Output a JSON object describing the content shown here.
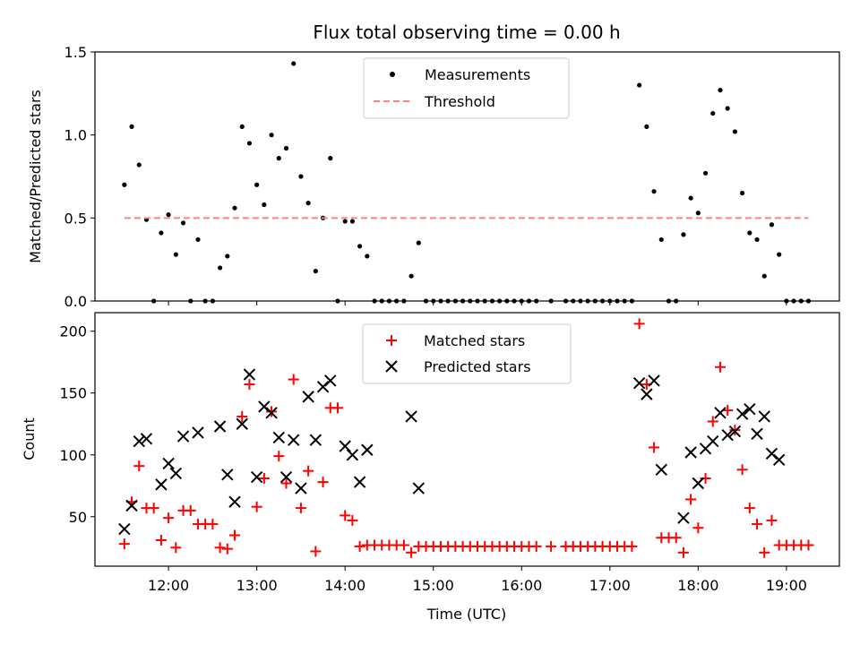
{
  "chart_data": [
    {
      "type": "scatter",
      "title": "Flux total observing time = 0.00 h",
      "xlabel": "",
      "ylabel": "Matched/Predicted stars",
      "xlim": [
        "11:10",
        "19:36"
      ],
      "ylim": [
        0,
        1.5
      ],
      "yticks": [
        "0.0",
        "0.5",
        "1.0",
        "1.5"
      ],
      "legend_position": "top-center",
      "series": [
        {
          "name": "Measurements",
          "marker": "dot",
          "color": "#000000",
          "points": [
            [
              "11:30",
              0.7
            ],
            [
              "11:35",
              1.05
            ],
            [
              "11:40",
              0.82
            ],
            [
              "11:45",
              0.49
            ],
            [
              "11:50",
              0.0
            ],
            [
              "11:55",
              0.41
            ],
            [
              "12:00",
              0.52
            ],
            [
              "12:05",
              0.28
            ],
            [
              "12:10",
              0.47
            ],
            [
              "12:15",
              0.0
            ],
            [
              "12:20",
              0.37
            ],
            [
              "12:25",
              0.0
            ],
            [
              "12:30",
              0.0
            ],
            [
              "12:35",
              0.2
            ],
            [
              "12:40",
              0.27
            ],
            [
              "12:45",
              0.56
            ],
            [
              "12:50",
              1.05
            ],
            [
              "12:55",
              0.95
            ],
            [
              "13:00",
              0.7
            ],
            [
              "13:05",
              0.58
            ],
            [
              "13:10",
              1.0
            ],
            [
              "13:15",
              0.86
            ],
            [
              "13:20",
              0.92
            ],
            [
              "13:25",
              1.43
            ],
            [
              "13:30",
              0.75
            ],
            [
              "13:35",
              0.59
            ],
            [
              "13:40",
              0.18
            ],
            [
              "13:45",
              0.5
            ],
            [
              "13:50",
              0.86
            ],
            [
              "13:55",
              0.0
            ],
            [
              "14:00",
              0.48
            ],
            [
              "14:05",
              0.48
            ],
            [
              "14:10",
              0.33
            ],
            [
              "14:15",
              0.27
            ],
            [
              "14:20",
              0.0
            ],
            [
              "14:25",
              0.0
            ],
            [
              "14:30",
              0.0
            ],
            [
              "14:35",
              0.0
            ],
            [
              "14:40",
              0.0
            ],
            [
              "14:45",
              0.15
            ],
            [
              "14:50",
              0.35
            ],
            [
              "14:55",
              0.0
            ],
            [
              "15:00",
              0.0
            ],
            [
              "15:05",
              0.0
            ],
            [
              "15:10",
              0.0
            ],
            [
              "15:15",
              0.0
            ],
            [
              "15:20",
              0.0
            ],
            [
              "15:25",
              0.0
            ],
            [
              "15:30",
              0.0
            ],
            [
              "15:35",
              0.0
            ],
            [
              "15:40",
              0.0
            ],
            [
              "15:45",
              0.0
            ],
            [
              "15:50",
              0.0
            ],
            [
              "15:55",
              0.0
            ],
            [
              "16:00",
              0.0
            ],
            [
              "16:05",
              0.0
            ],
            [
              "16:10",
              0.0
            ],
            [
              "16:20",
              0.0
            ],
            [
              "16:30",
              0.0
            ],
            [
              "16:35",
              0.0
            ],
            [
              "16:40",
              0.0
            ],
            [
              "16:45",
              0.0
            ],
            [
              "16:50",
              0.0
            ],
            [
              "16:55",
              0.0
            ],
            [
              "17:00",
              0.0
            ],
            [
              "17:05",
              0.0
            ],
            [
              "17:10",
              0.0
            ],
            [
              "17:15",
              0.0
            ],
            [
              "17:20",
              1.3
            ],
            [
              "17:25",
              1.05
            ],
            [
              "17:30",
              0.66
            ],
            [
              "17:35",
              0.37
            ],
            [
              "17:40",
              0.0
            ],
            [
              "17:45",
              0.0
            ],
            [
              "17:50",
              0.4
            ],
            [
              "17:55",
              0.62
            ],
            [
              "18:00",
              0.53
            ],
            [
              "18:05",
              0.77
            ],
            [
              "18:10",
              1.13
            ],
            [
              "18:15",
              1.27
            ],
            [
              "18:20",
              1.16
            ],
            [
              "18:25",
              1.02
            ],
            [
              "18:30",
              0.65
            ],
            [
              "18:35",
              0.41
            ],
            [
              "18:40",
              0.37
            ],
            [
              "18:45",
              0.15
            ],
            [
              "18:50",
              0.46
            ],
            [
              "18:55",
              0.28
            ],
            [
              "19:00",
              0.0
            ],
            [
              "19:05",
              0.0
            ],
            [
              "19:10",
              0.0
            ],
            [
              "19:15",
              0.0
            ]
          ]
        },
        {
          "name": "Threshold",
          "marker": "dashed-line",
          "color": "#ff8080",
          "points": [
            [
              "11:30",
              0.5
            ],
            [
              "19:15",
              0.5
            ]
          ]
        }
      ]
    },
    {
      "type": "scatter",
      "title": "",
      "xlabel": "Time (UTC)",
      "ylabel": "Count",
      "xlim": [
        "11:10",
        "19:36"
      ],
      "ylim": [
        10,
        215
      ],
      "yticks": [
        "50",
        "100",
        "150",
        "200"
      ],
      "xticks": [
        "12:00",
        "13:00",
        "14:00",
        "15:00",
        "16:00",
        "17:00",
        "18:00",
        "19:00"
      ],
      "legend_position": "top-center",
      "series": [
        {
          "name": "Matched stars",
          "marker": "plus",
          "color": "#ff0000",
          "points": [
            [
              "11:30",
              28
            ],
            [
              "11:35",
              62
            ],
            [
              "11:40",
              91
            ],
            [
              "11:45",
              57
            ],
            [
              "11:50",
              57
            ],
            [
              "11:55",
              31
            ],
            [
              "12:00",
              49
            ],
            [
              "12:05",
              25
            ],
            [
              "12:10",
              55
            ],
            [
              "12:15",
              55
            ],
            [
              "12:20",
              44
            ],
            [
              "12:25",
              44
            ],
            [
              "12:30",
              44
            ],
            [
              "12:35",
              25
            ],
            [
              "12:40",
              24
            ],
            [
              "12:45",
              35
            ],
            [
              "12:50",
              131
            ],
            [
              "12:55",
              157
            ],
            [
              "13:00",
              58
            ],
            [
              "13:05",
              81
            ],
            [
              "13:10",
              135
            ],
            [
              "13:15",
              99
            ],
            [
              "13:20",
              77
            ],
            [
              "13:25",
              161
            ],
            [
              "13:30",
              57
            ],
            [
              "13:35",
              87
            ],
            [
              "13:40",
              22
            ],
            [
              "13:45",
              78
            ],
            [
              "13:50",
              138
            ],
            [
              "13:55",
              138
            ],
            [
              "14:00",
              51
            ],
            [
              "14:05",
              47
            ],
            [
              "14:10",
              26
            ],
            [
              "14:15",
              27
            ],
            [
              "14:20",
              27
            ],
            [
              "14:25",
              27
            ],
            [
              "14:30",
              27
            ],
            [
              "14:35",
              27
            ],
            [
              "14:40",
              27
            ],
            [
              "14:45",
              21
            ],
            [
              "14:50",
              26
            ],
            [
              "14:55",
              26
            ],
            [
              "15:00",
              26
            ],
            [
              "15:05",
              26
            ],
            [
              "15:10",
              26
            ],
            [
              "15:15",
              26
            ],
            [
              "15:20",
              26
            ],
            [
              "15:25",
              26
            ],
            [
              "15:30",
              26
            ],
            [
              "15:35",
              26
            ],
            [
              "15:40",
              26
            ],
            [
              "15:45",
              26
            ],
            [
              "15:50",
              26
            ],
            [
              "15:55",
              26
            ],
            [
              "16:00",
              26
            ],
            [
              "16:05",
              26
            ],
            [
              "16:10",
              26
            ],
            [
              "16:20",
              26
            ],
            [
              "16:30",
              26
            ],
            [
              "16:35",
              26
            ],
            [
              "16:40",
              26
            ],
            [
              "16:45",
              26
            ],
            [
              "16:50",
              26
            ],
            [
              "16:55",
              26
            ],
            [
              "17:00",
              26
            ],
            [
              "17:05",
              26
            ],
            [
              "17:10",
              26
            ],
            [
              "17:15",
              26
            ],
            [
              "17:20",
              206
            ],
            [
              "17:25",
              157
            ],
            [
              "17:30",
              106
            ],
            [
              "17:35",
              33
            ],
            [
              "17:40",
              33
            ],
            [
              "17:45",
              33
            ],
            [
              "17:50",
              21
            ],
            [
              "17:55",
              64
            ],
            [
              "18:00",
              41
            ],
            [
              "18:05",
              81
            ],
            [
              "18:10",
              127
            ],
            [
              "18:15",
              171
            ],
            [
              "18:20",
              136
            ],
            [
              "18:25",
              120
            ],
            [
              "18:30",
              88
            ],
            [
              "18:35",
              57
            ],
            [
              "18:40",
              44
            ],
            [
              "18:45",
              21
            ],
            [
              "18:50",
              47
            ],
            [
              "18:55",
              27
            ],
            [
              "19:00",
              27
            ],
            [
              "19:05",
              27
            ],
            [
              "19:10",
              27
            ],
            [
              "19:15",
              27
            ]
          ]
        },
        {
          "name": "Predicted stars",
          "marker": "x",
          "color": "#000000",
          "points": [
            [
              "11:30",
              40
            ],
            [
              "11:35",
              59
            ],
            [
              "11:40",
              111
            ],
            [
              "11:45",
              113
            ],
            [
              "11:55",
              76
            ],
            [
              "12:00",
              93
            ],
            [
              "12:05",
              85
            ],
            [
              "12:10",
              115
            ],
            [
              "12:20",
              118
            ],
            [
              "12:35",
              123
            ],
            [
              "12:40",
              84
            ],
            [
              "12:45",
              62
            ],
            [
              "12:50",
              125
            ],
            [
              "12:55",
              165
            ],
            [
              "13:00",
              82
            ],
            [
              "13:05",
              139
            ],
            [
              "13:10",
              134
            ],
            [
              "13:15",
              114
            ],
            [
              "13:20",
              82
            ],
            [
              "13:25",
              112
            ],
            [
              "13:30",
              73
            ],
            [
              "13:35",
              147
            ],
            [
              "13:40",
              112
            ],
            [
              "13:45",
              155
            ],
            [
              "13:50",
              160
            ],
            [
              "14:00",
              107
            ],
            [
              "14:05",
              100
            ],
            [
              "14:10",
              78
            ],
            [
              "14:15",
              104
            ],
            [
              "14:45",
              131
            ],
            [
              "14:50",
              73
            ],
            [
              "17:20",
              158
            ],
            [
              "17:25",
              149
            ],
            [
              "17:30",
              160
            ],
            [
              "17:35",
              88
            ],
            [
              "17:50",
              49
            ],
            [
              "17:55",
              102
            ],
            [
              "18:00",
              77
            ],
            [
              "18:05",
              105
            ],
            [
              "18:10",
              111
            ],
            [
              "18:15",
              134
            ],
            [
              "18:20",
              116
            ],
            [
              "18:25",
              119
            ],
            [
              "18:30",
              133
            ],
            [
              "18:35",
              137
            ],
            [
              "18:40",
              117
            ],
            [
              "18:45",
              131
            ],
            [
              "18:50",
              101
            ],
            [
              "18:55",
              96
            ]
          ]
        }
      ]
    }
  ]
}
